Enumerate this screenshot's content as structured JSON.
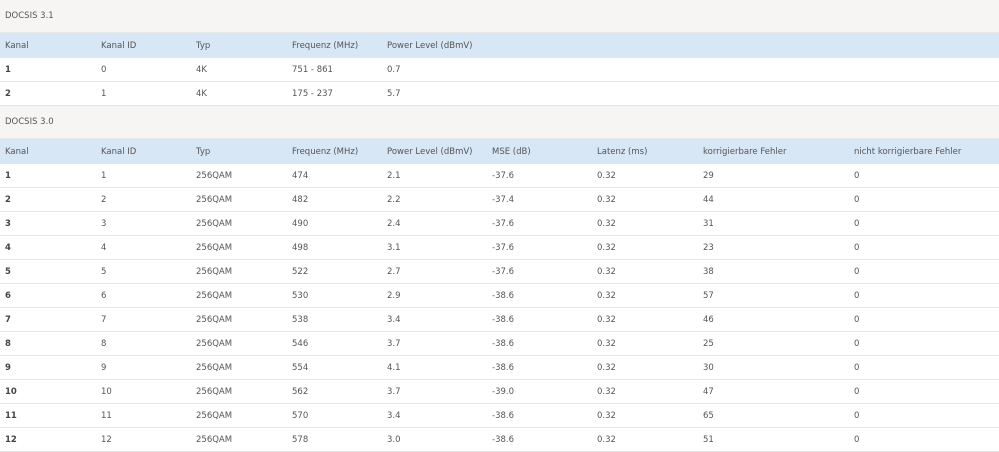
{
  "sections": [
    {
      "title": "DOCSIS 3.1",
      "columns": [
        "Kanal",
        "Kanal ID",
        "Typ",
        "Frequenz (MHz)",
        "Power Level (dBmV)"
      ],
      "rows": [
        [
          "1",
          "0",
          "4K",
          "751 - 861",
          "0.7"
        ],
        [
          "2",
          "1",
          "4K",
          "175 - 237",
          "5.7"
        ]
      ]
    },
    {
      "title": "DOCSIS 3.0",
      "columns": [
        "Kanal",
        "Kanal ID",
        "Typ",
        "Frequenz (MHz)",
        "Power Level (dBmV)",
        "MSE (dB)",
        "Latenz (ms)",
        "korrigierbare Fehler",
        "nicht korrigierbare Fehler"
      ],
      "rows": [
        [
          "1",
          "1",
          "256QAM",
          "474",
          "2.1",
          "-37.6",
          "0.32",
          "29",
          "0"
        ],
        [
          "2",
          "2",
          "256QAM",
          "482",
          "2.2",
          "-37.4",
          "0.32",
          "44",
          "0"
        ],
        [
          "3",
          "3",
          "256QAM",
          "490",
          "2.4",
          "-37.6",
          "0.32",
          "31",
          "0"
        ],
        [
          "4",
          "4",
          "256QAM",
          "498",
          "3.1",
          "-37.6",
          "0.32",
          "23",
          "0"
        ],
        [
          "5",
          "5",
          "256QAM",
          "522",
          "2.7",
          "-37.6",
          "0.32",
          "38",
          "0"
        ],
        [
          "6",
          "6",
          "256QAM",
          "530",
          "2.9",
          "-38.6",
          "0.32",
          "57",
          "0"
        ],
        [
          "7",
          "7",
          "256QAM",
          "538",
          "3.4",
          "-38.6",
          "0.32",
          "46",
          "0"
        ],
        [
          "8",
          "8",
          "256QAM",
          "546",
          "3.7",
          "-38.6",
          "0.32",
          "25",
          "0"
        ],
        [
          "9",
          "9",
          "256QAM",
          "554",
          "4.1",
          "-38.6",
          "0.32",
          "30",
          "0"
        ],
        [
          "10",
          "10",
          "256QAM",
          "562",
          "3.7",
          "-39.0",
          "0.32",
          "47",
          "0"
        ],
        [
          "11",
          "11",
          "256QAM",
          "570",
          "3.4",
          "-38.6",
          "0.32",
          "65",
          "0"
        ],
        [
          "12",
          "12",
          "256QAM",
          "578",
          "3.0",
          "-38.6",
          "0.32",
          "51",
          "0"
        ]
      ]
    }
  ]
}
